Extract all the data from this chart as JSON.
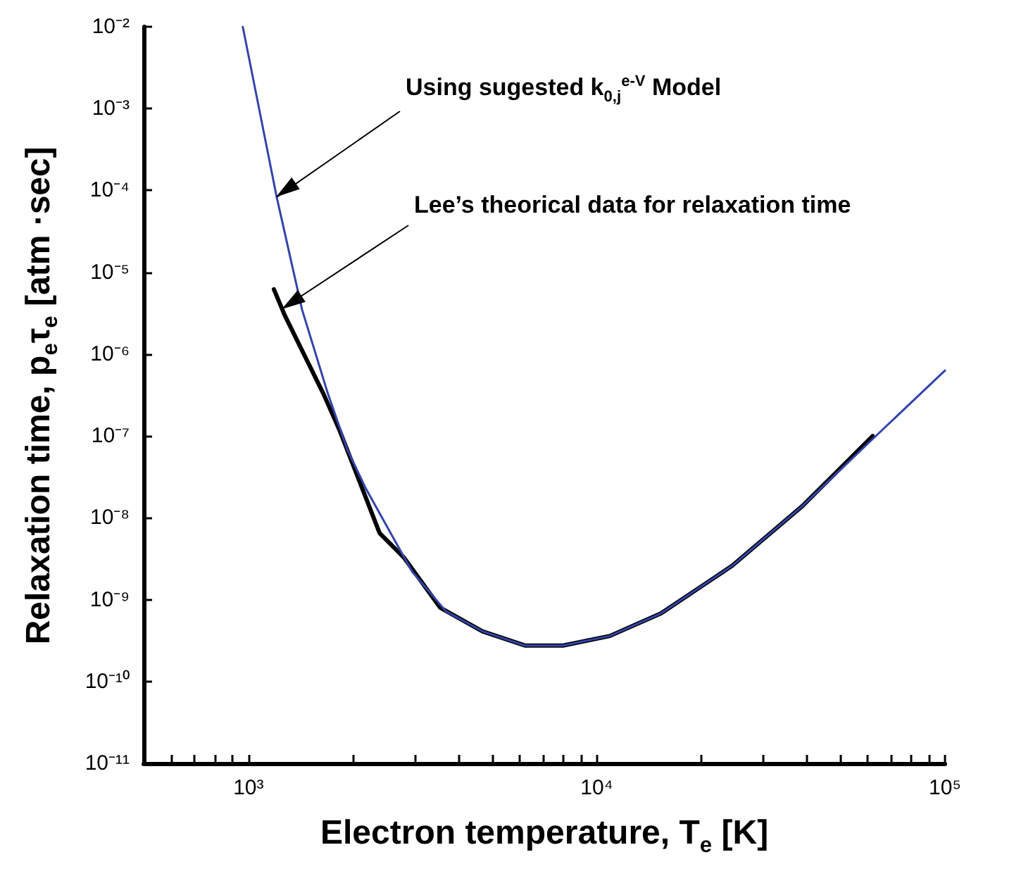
{
  "chart_data": {
    "type": "line",
    "xlabel": "Electron temperature, T$_{e}$ [K]",
    "ylabel": "Relaxation time, p$_{e}$τ$_{e}$ [atm ·sec]",
    "log": "xy",
    "grid": false,
    "marker": "none",
    "line_style": "solid",
    "xlim": [
      500,
      100000
    ],
    "xticks": [
      {
        "value": 600,
        "label": null
      },
      {
        "value": 700,
        "label": null
      },
      {
        "value": 800,
        "label": null
      },
      {
        "value": 900,
        "label": null
      },
      {
        "value": 1000,
        "label": "10³"
      },
      {
        "value": 2000,
        "label": null
      },
      {
        "value": 3000,
        "label": null
      },
      {
        "value": 4000,
        "label": null
      },
      {
        "value": 5000,
        "label": null
      },
      {
        "value": 6000,
        "label": null
      },
      {
        "value": 7000,
        "label": null
      },
      {
        "value": 8000,
        "label": null
      },
      {
        "value": 9000,
        "label": null
      },
      {
        "value": 10000,
        "label": "10⁴"
      },
      {
        "value": 20000,
        "label": null
      },
      {
        "value": 30000,
        "label": null
      },
      {
        "value": 40000,
        "label": null
      },
      {
        "value": 50000,
        "label": null
      },
      {
        "value": 60000,
        "label": null
      },
      {
        "value": 70000,
        "label": null
      },
      {
        "value": 80000,
        "label": null
      },
      {
        "value": 90000,
        "label": null
      },
      {
        "value": 100000,
        "label": "10⁵"
      }
    ],
    "ylim": [
      1e-11,
      0.01
    ],
    "yticks": [
      {
        "value": 1e-11,
        "label": "10⁻¹¹"
      },
      {
        "value": 1e-10,
        "label": "10⁻¹⁰"
      },
      {
        "value": 1e-09,
        "label": "10⁻⁹"
      },
      {
        "value": 1e-08,
        "label": "10⁻⁸"
      },
      {
        "value": 1e-07,
        "label": "10⁻⁷"
      },
      {
        "value": 1e-06,
        "label": "10⁻⁶"
      },
      {
        "value": 1e-05,
        "label": "10⁻⁵"
      },
      {
        "value": 0.0001,
        "label": "10⁻⁴"
      },
      {
        "value": 0.001,
        "label": "10⁻³"
      },
      {
        "value": 0.01,
        "label": "10⁻²"
      }
    ],
    "series": [
      {
        "color": "#000000",
        "x": [
          1183,
          1270,
          1640,
          1830,
          2380,
          2790,
          3550,
          4700,
          6220,
          8000,
          10900,
          15300,
          24500,
          39000,
          62000
        ],
        "values": [
          6.2e-06,
          3e-06,
          3.3e-07,
          1.15e-07,
          6.5e-09,
          3.3e-09,
          8e-10,
          4.1e-10,
          2.75e-10,
          2.75e-10,
          3.6e-10,
          6.8e-10,
          2.6e-09,
          1.4e-08,
          1e-07
        ]
      },
      {
        "color": "#3344aa",
        "x": [
          963,
          1205,
          1425,
          1690,
          1920,
          2170,
          2950,
          3690,
          4700,
          6220,
          8000,
          10900,
          15300,
          24500,
          39000,
          62200,
          100000
        ],
        "values": [
          0.01,
          8.3e-05,
          3.5e-06,
          3.3e-07,
          6.9e-08,
          2.3e-08,
          2.2e-09,
          7.2e-10,
          4.1e-10,
          2.75e-10,
          2.75e-10,
          3.6e-10,
          6.8e-10,
          2.6e-09,
          1.4e-08,
          9.3e-08,
          6.3e-07
        ]
      }
    ],
    "annotations": [
      {
        "text": "Using sugested k$_{0,j}$$^{e-V}$ Model",
        "x": 1205,
        "y": 8.3e-05
      },
      {
        "text": "Lee’s theorical data for relaxation time",
        "x": 1250,
        "y": 3.6e-06
      }
    ]
  }
}
